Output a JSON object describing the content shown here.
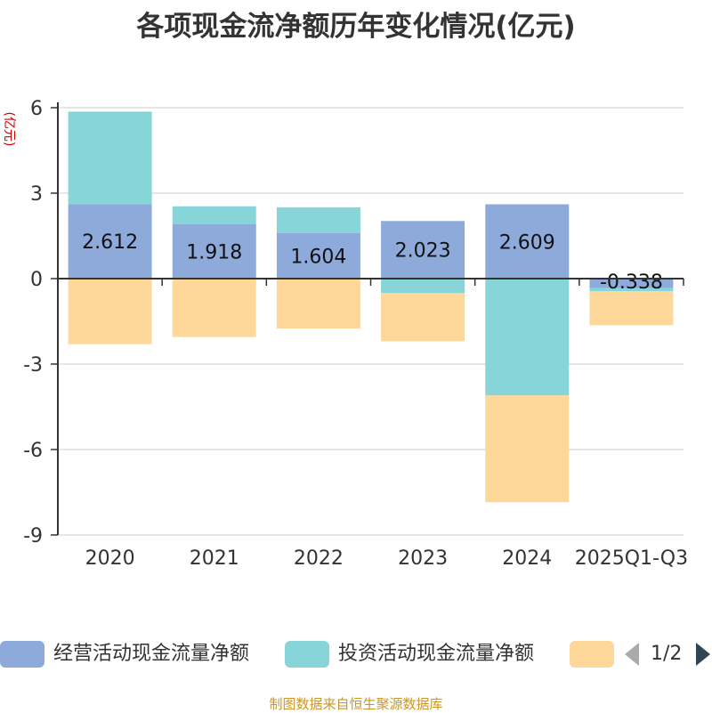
{
  "chart_data": {
    "type": "bar",
    "stacked": true,
    "title": "各项现金流净额历年变化情况(亿元)",
    "ylabel": "(亿元)",
    "categories": [
      "2020",
      "2021",
      "2022",
      "2023",
      "2024",
      "2025Q1-Q3"
    ],
    "ylim": [
      -9,
      6
    ],
    "yticks": [
      6,
      3,
      0,
      -3,
      -6,
      -9
    ],
    "ytick_labels": [
      "6",
      "3",
      "0",
      "-3",
      "-6",
      "-9"
    ],
    "data_labels": [
      "2.612",
      "1.918",
      "1.604",
      "2.023",
      "2.609",
      "-0.338"
    ],
    "series": [
      {
        "name": "经营活动现金流量净额",
        "color": "#8eaadb",
        "values": [
          2.612,
          1.918,
          1.604,
          2.023,
          2.609,
          -0.338
        ]
      },
      {
        "name": "投资活动现金流量净额",
        "color": "#87d5d8",
        "values": [
          3.25,
          0.62,
          0.9,
          -0.5,
          -4.1,
          -0.1
        ]
      },
      {
        "name": "",
        "color": "#fdd89a",
        "values": [
          -2.3,
          -2.05,
          -1.75,
          -1.7,
          -3.75,
          -1.2
        ]
      }
    ]
  },
  "legend": {
    "items": [
      {
        "label": "经营活动现金流量净额",
        "color": "#8eaadb"
      },
      {
        "label": "投资活动现金流量净额",
        "color": "#87d5d8"
      },
      {
        "label": "",
        "color": "#fdd89a"
      }
    ],
    "page": "1/2"
  },
  "source": "制图数据来自恒生聚源数据库"
}
